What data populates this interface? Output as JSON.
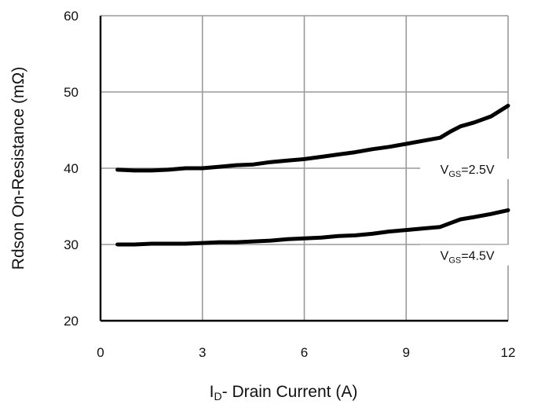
{
  "chart_data": {
    "type": "line",
    "xlabel": {
      "main": "I",
      "sub": "D",
      "rest": "- Drain Current (A)"
    },
    "ylabel": "Rdson On-Resistance (mΩ)",
    "xlim": [
      0,
      12
    ],
    "ylim": [
      20,
      60
    ],
    "xticks": [
      0,
      3,
      6,
      9,
      12
    ],
    "yticks": [
      20,
      30,
      40,
      50,
      60
    ],
    "xtick_labels": [
      "0",
      "3",
      "6",
      "9",
      "12"
    ],
    "ytick_labels": [
      "20",
      "30",
      "40",
      "50",
      "60"
    ],
    "grid": true,
    "series": [
      {
        "name": {
          "main": "V",
          "sub": "GS",
          "rest": "=2.5V"
        },
        "label_at": [
          10.8,
          39.6
        ],
        "x": [
          0.5,
          1.0,
          1.5,
          2.0,
          2.5,
          3.0,
          3.5,
          4.0,
          4.5,
          5.0,
          5.5,
          6.0,
          6.5,
          7.0,
          7.5,
          8.0,
          8.5,
          9.0,
          9.5,
          10.0,
          10.3,
          10.6,
          11.0,
          11.5,
          12.0
        ],
        "values": [
          39.8,
          39.7,
          39.7,
          39.8,
          40.0,
          40.0,
          40.2,
          40.4,
          40.5,
          40.8,
          41.0,
          41.2,
          41.5,
          41.8,
          42.1,
          42.5,
          42.8,
          43.2,
          43.6,
          44.0,
          44.8,
          45.5,
          46.0,
          46.8,
          48.2
        ]
      },
      {
        "name": {
          "main": "V",
          "sub": "GS",
          "rest": "=4.5V"
        },
        "label_at": [
          10.8,
          28.3
        ],
        "x": [
          0.5,
          1.0,
          1.5,
          2.0,
          2.5,
          3.0,
          3.5,
          4.0,
          4.5,
          5.0,
          5.5,
          6.0,
          6.5,
          7.0,
          7.5,
          8.0,
          8.5,
          9.0,
          9.5,
          10.0,
          10.3,
          10.6,
          11.0,
          11.5,
          12.0
        ],
        "values": [
          30.0,
          30.0,
          30.1,
          30.1,
          30.1,
          30.2,
          30.3,
          30.3,
          30.4,
          30.5,
          30.7,
          30.8,
          30.9,
          31.1,
          31.2,
          31.4,
          31.7,
          31.9,
          32.1,
          32.3,
          32.8,
          33.3,
          33.6,
          34.0,
          34.5
        ]
      }
    ]
  }
}
